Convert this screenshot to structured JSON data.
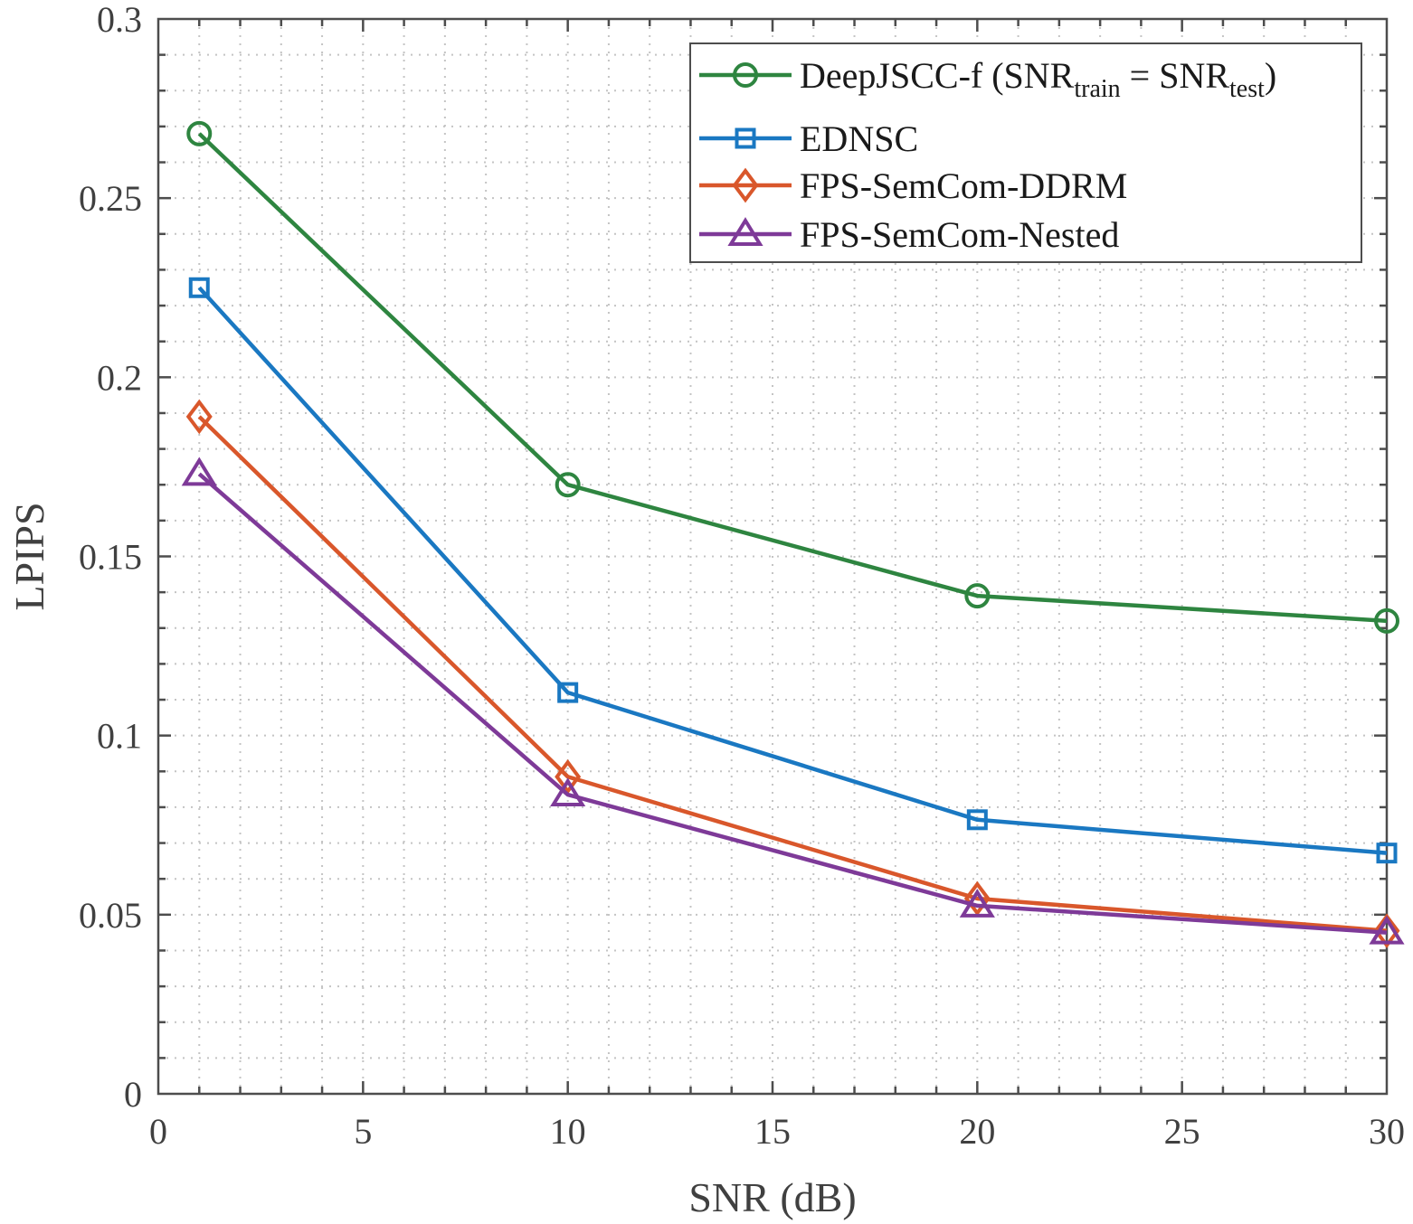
{
  "chart_data": {
    "type": "line",
    "title": "",
    "xlabel": "SNR (dB)",
    "ylabel": "LPIPS",
    "xlim": [
      0,
      30
    ],
    "ylim": [
      0,
      0.3
    ],
    "xticks": [
      0,
      5,
      10,
      15,
      20,
      25,
      30
    ],
    "xtick_labels": [
      "0",
      "5",
      "10",
      "15",
      "20",
      "25",
      "30"
    ],
    "yticks": [
      0,
      0.05,
      0.1,
      0.15,
      0.2,
      0.25,
      0.3
    ],
    "ytick_labels": [
      "0",
      "0.05",
      "0.1",
      "0.15",
      "0.2",
      "0.25",
      "0.3"
    ],
    "x_minor_step": 1,
    "y_minor_step": 0.01,
    "grid": "on (dotted, major and minor)",
    "legend_position": "top-right",
    "x": [
      1,
      10,
      20,
      30
    ],
    "series": [
      {
        "name": "DeepJSCC-f (SNR_train = SNR_test)",
        "legend_main": "DeepJSCC-f (SNR",
        "legend_sub1": "train",
        "legend_mid": " = SNR",
        "legend_sub2": "test",
        "legend_end": ")",
        "color": "#2e8540",
        "marker": "circle",
        "values": [
          0.268,
          0.17,
          0.139,
          0.132
        ]
      },
      {
        "name": "EDNSC",
        "color": "#1a78c2",
        "marker": "square",
        "values": [
          0.225,
          0.112,
          0.0765,
          0.0672
        ]
      },
      {
        "name": "FPS-SemCom-DDRM",
        "color": "#d9572b",
        "marker": "diamond",
        "values": [
          0.189,
          0.0885,
          0.0545,
          0.0455
        ]
      },
      {
        "name": "FPS-SemCom-Nested",
        "color": "#7e3a98",
        "marker": "triangle",
        "values": [
          0.173,
          0.0835,
          0.0525,
          0.045
        ]
      }
    ]
  }
}
